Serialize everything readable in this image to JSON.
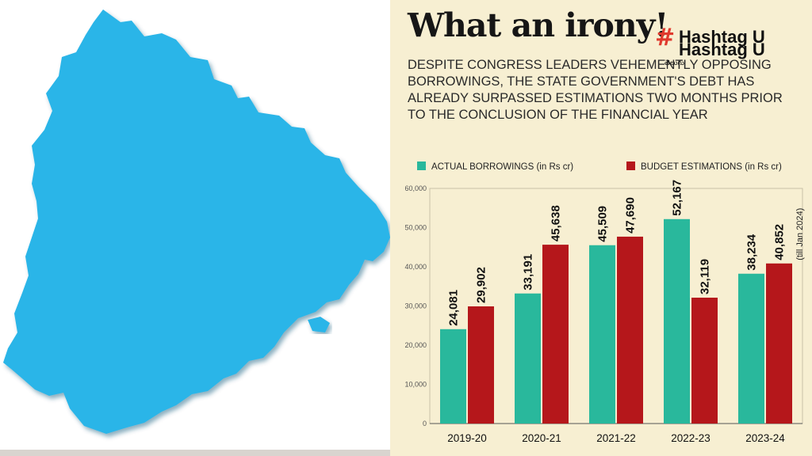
{
  "headline": "What an irony!",
  "subhead": "DESPITE CONGRESS LEADERS VEHEMENTLY OPPOSING BORROWINGS, THE STATE GOVERNMENT'S DEBT HAS ALREADY SURPASSED ESTIMATIONS TWO MONTHS PRIOR TO THE CONCLUSION OF THE FINANCIAL YEAR",
  "logo": {
    "symbol": "#",
    "text": "Hashtag U",
    "sub": "తెలుగు"
  },
  "map": {
    "fill": "#2bb5e8"
  },
  "colors": {
    "background": "#f7efd2",
    "actual": "#29b89c",
    "budget": "#b5171b"
  },
  "chart_data": {
    "type": "bar",
    "categories": [
      "2019-20",
      "2020-21",
      "2021-22",
      "2022-23",
      "2023-24"
    ],
    "series": [
      {
        "name": "ACTUAL BORROWINGS (in Rs cr)",
        "values": [
          24081,
          33191,
          45509,
          52167,
          38234
        ],
        "labels": [
          "24,081",
          "33,191",
          "45,509",
          "52,167",
          "38,234"
        ]
      },
      {
        "name": "BUDGET ESTIMATIONS (in Rs cr)",
        "values": [
          29902,
          45638,
          47690,
          32119,
          40852
        ],
        "labels": [
          "29,902",
          "45,638",
          "47,690",
          "32,119",
          "40,852"
        ]
      }
    ],
    "yticks": [
      "0",
      "10,000",
      "20,000",
      "30,000",
      "40,000",
      "50,000",
      "60,000"
    ],
    "ylim": [
      0,
      60000
    ],
    "annotation": "(till Jan 2024)",
    "legend": "top",
    "grid": false
  }
}
